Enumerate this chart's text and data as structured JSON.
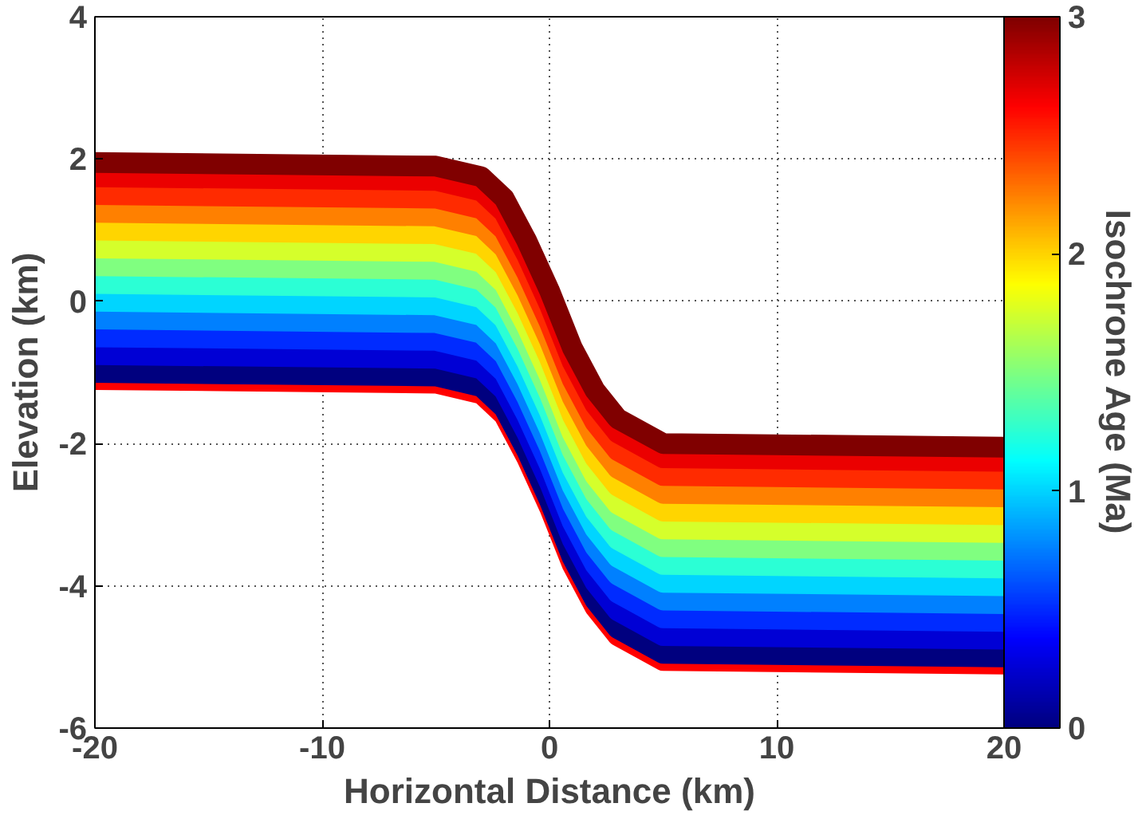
{
  "chart_data": {
    "type": "line",
    "xlabel": "Horizontal Distance (km)",
    "ylabel": "Elevation (km)",
    "clabel": "Isochrone Age (Ma)",
    "x": [
      -20,
      -5,
      -3,
      -2,
      -1,
      0,
      1,
      2,
      3,
      5,
      20
    ],
    "xlim": [
      -20,
      20
    ],
    "xticks": [
      -20,
      -10,
      0,
      10,
      20
    ],
    "ylim": [
      -6,
      4
    ],
    "yticks": [
      -6,
      -4,
      -2,
      0,
      2,
      4
    ],
    "clim": [
      0,
      3
    ],
    "cticks": [
      0,
      1,
      2,
      3
    ],
    "grid": true,
    "line_style": "solid",
    "series": [
      {
        "color": "#ff0000",
        "values": [
          -1.1,
          -1.15,
          -1.3,
          -1.6,
          -2.2,
          -2.9,
          -3.7,
          -4.3,
          -4.7,
          -5.05,
          -5.1
        ]
      },
      {
        "color": "#00007f",
        "values": [
          -1,
          -1.05,
          -1.2,
          -1.5,
          -2.1,
          -2.8,
          -3.6,
          -4.2,
          -4.6,
          -4.95,
          -5
        ]
      },
      {
        "color": "#0000d5",
        "values": [
          -0.75,
          -0.8,
          -0.95,
          -1.25,
          -1.85,
          -2.55,
          -3.35,
          -3.95,
          -4.35,
          -4.7,
          -4.75
        ]
      },
      {
        "color": "#002bff",
        "values": [
          -0.5,
          -0.55,
          -0.7,
          -1,
          -1.6,
          -2.3,
          -3.1,
          -3.7,
          -4.1,
          -4.45,
          -4.5
        ]
      },
      {
        "color": "#0080ff",
        "values": [
          -0.25,
          -0.3,
          -0.45,
          -0.75,
          -1.35,
          -2.05,
          -2.85,
          -3.45,
          -3.85,
          -4.2,
          -4.25
        ]
      },
      {
        "color": "#00d5ff",
        "values": [
          0,
          -0.05,
          -0.2,
          -0.5,
          -1.1,
          -1.8,
          -2.6,
          -3.2,
          -3.6,
          -3.95,
          -4
        ]
      },
      {
        "color": "#2bffd5",
        "values": [
          0.25,
          0.2,
          0.05,
          -0.25,
          -0.85,
          -1.55,
          -2.35,
          -2.95,
          -3.35,
          -3.7,
          -3.75
        ]
      },
      {
        "color": "#80ff80",
        "values": [
          0.5,
          0.45,
          0.3,
          0,
          -0.6,
          -1.3,
          -2.1,
          -2.7,
          -3.1,
          -3.45,
          -3.5
        ]
      },
      {
        "color": "#d5ff2b",
        "values": [
          0.75,
          0.7,
          0.55,
          0.25,
          -0.35,
          -1.05,
          -1.85,
          -2.45,
          -2.85,
          -3.2,
          -3.25
        ]
      },
      {
        "color": "#ffd500",
        "values": [
          1,
          0.95,
          0.8,
          0.5,
          -0.1,
          -0.8,
          -1.6,
          -2.2,
          -2.6,
          -2.95,
          -3
        ]
      },
      {
        "color": "#ff8000",
        "values": [
          1.25,
          1.2,
          1.05,
          0.75,
          0.15,
          -0.55,
          -1.35,
          -1.95,
          -2.35,
          -2.7,
          -2.75
        ]
      },
      {
        "color": "#ff2b00",
        "values": [
          1.5,
          1.45,
          1.3,
          1,
          0.4,
          -0.3,
          -1.1,
          -1.7,
          -2.1,
          -2.45,
          -2.5
        ]
      },
      {
        "color": "#eb0000",
        "values": [
          1.75,
          1.7,
          1.55,
          1.25,
          0.65,
          -0.05,
          -0.85,
          -1.45,
          -1.85,
          -2.2,
          -2.25
        ]
      },
      {
        "color": "#800000",
        "values": [
          1.95,
          1.9,
          1.75,
          1.45,
          0.85,
          0.15,
          -0.65,
          -1.25,
          -1.65,
          -2,
          -2.05
        ]
      }
    ]
  }
}
